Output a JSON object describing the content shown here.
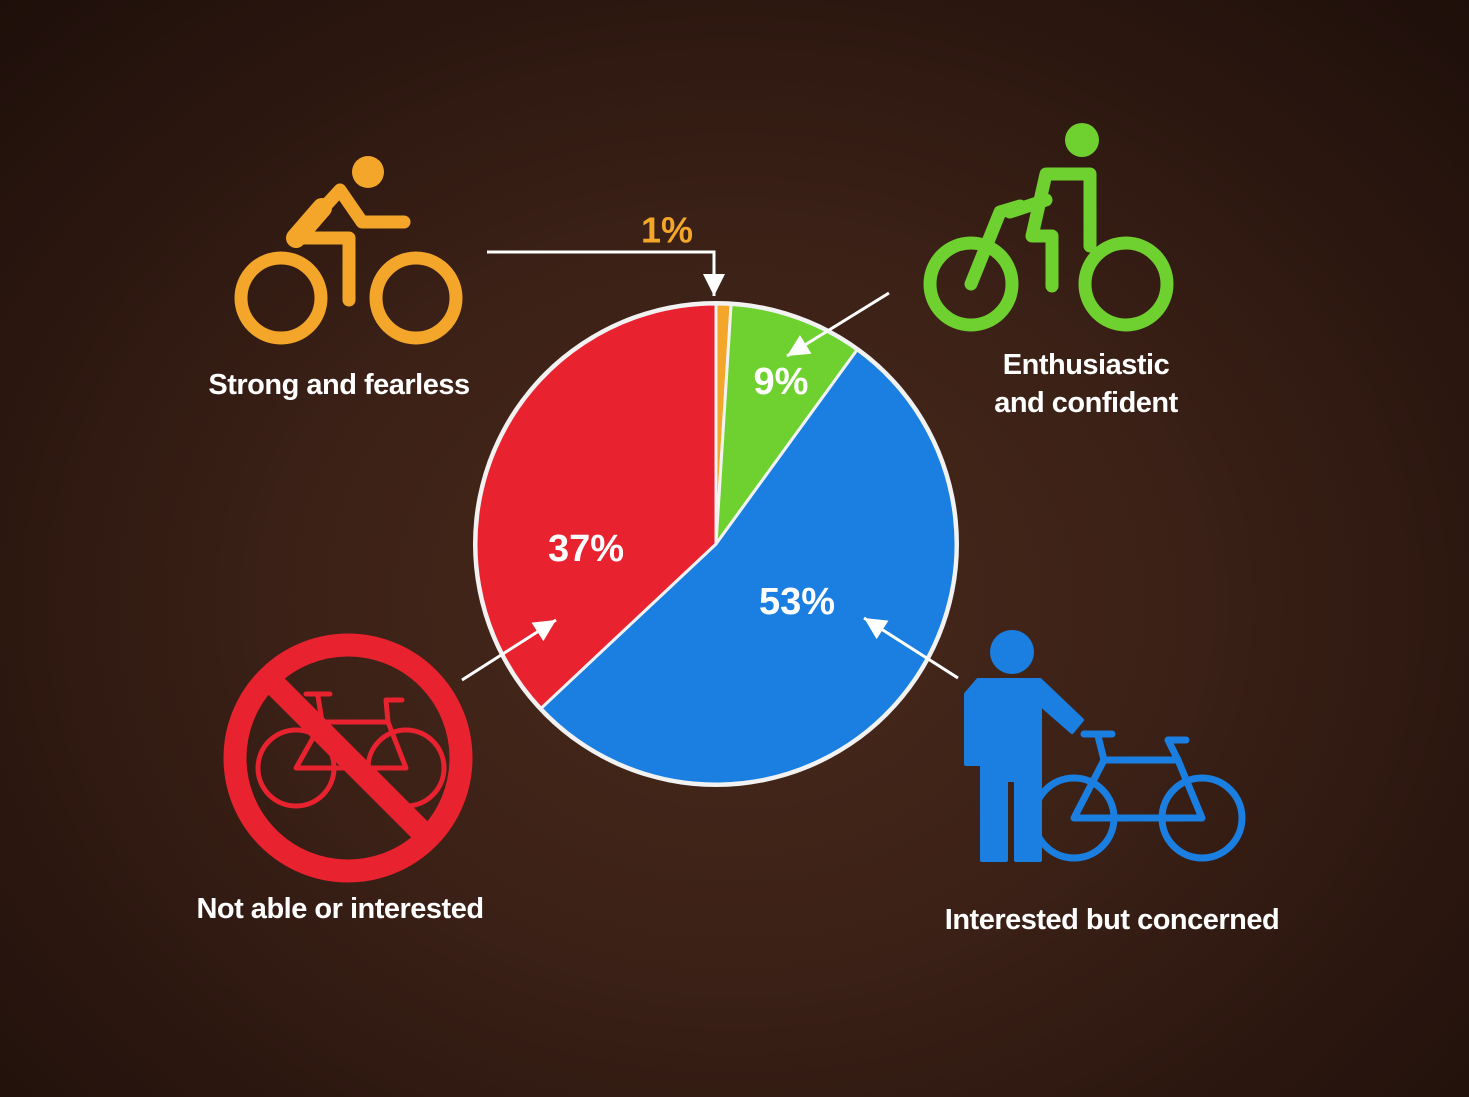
{
  "chart_data": {
    "type": "pie",
    "slices": [
      {
        "label": "Strong and fearless",
        "value": 1,
        "value_label": "1%",
        "color": "#f3a62a",
        "icon": "cyclist-racing-icon"
      },
      {
        "label": "Enthusiastic and confident",
        "label_lines": [
          "Enthusiastic",
          "and confident"
        ],
        "value": 9,
        "value_label": "9%",
        "color": "#6fd130",
        "icon": "cyclist-upright-icon"
      },
      {
        "label": "Interested but concerned",
        "value": 53,
        "value_label": "53%",
        "color": "#1a7fe0",
        "icon": "person-with-bicycle-icon"
      },
      {
        "label": "Not able or interested",
        "value": 37,
        "value_label": "37%",
        "color": "#e8222f",
        "icon": "no-bicycle-icon"
      }
    ],
    "start_angle_deg": 0,
    "direction": "clockwise",
    "legend": "none"
  }
}
